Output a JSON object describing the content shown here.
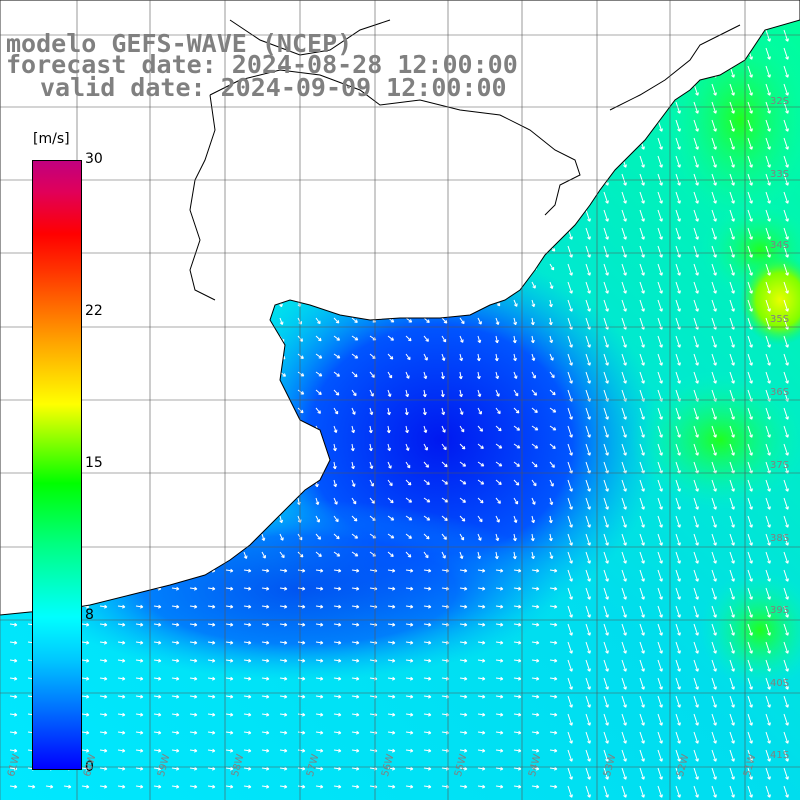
{
  "header": {
    "line1": "modelo GEFS-WAVE (NCEP)",
    "line2": "forecast date: 2024-08-28 12:00:00",
    "line3": "valid date: 2024-09-09 12:00:00"
  },
  "colorbar": {
    "unit": "[m/s]",
    "ticks": [
      "30",
      "22",
      "15",
      "8",
      "0"
    ],
    "range": [
      0,
      30
    ],
    "colors": [
      "#0000ff",
      "#00c8ff",
      "#00ffff",
      "#00ff00",
      "#ffff00",
      "#ff0000",
      "#c0007f"
    ]
  },
  "map": {
    "lat_labels": [
      "32S",
      "33S",
      "34S",
      "35S",
      "36S",
      "37S",
      "38S",
      "39S",
      "40S",
      "41S"
    ],
    "lon_labels": [
      "61W",
      "60W",
      "59W",
      "58W",
      "57W",
      "56W",
      "55W",
      "54W",
      "53W",
      "52W",
      "51W"
    ],
    "land_color": "#ffffff",
    "ocean_low_color": "#0000ff",
    "ocean_high_color": "#00ff00"
  }
}
